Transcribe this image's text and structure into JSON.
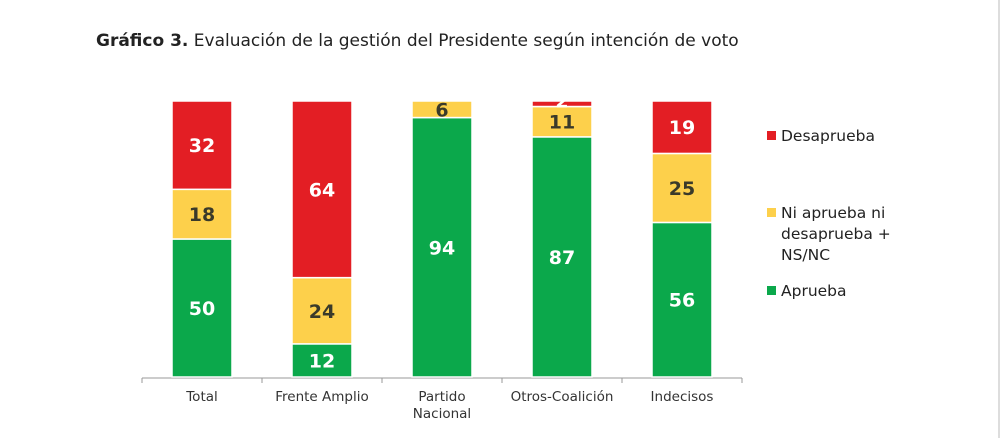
{
  "chart_data": {
    "type": "bar",
    "stacked": true,
    "title_bold": "Gráfico 3.",
    "title": "Evaluación de la gestión del Presidente según intención de voto",
    "categories": [
      [
        "Total"
      ],
      [
        "Frente Amplio"
      ],
      [
        "Partido",
        "Nacional"
      ],
      [
        "Otros-Coalición"
      ],
      [
        "Indecisos"
      ]
    ],
    "series": [
      {
        "name": "Aprueba",
        "color": "#0ba84b",
        "label_color": "#ffffff",
        "values": [
          50,
          12,
          94,
          87,
          56
        ]
      },
      {
        "name": "Ni aprueba ni desaprueba + NS/NC",
        "legend_lines": [
          "Ni aprueba ni",
          "desaprueba +",
          "NS/NC"
        ],
        "color": "#fdd04b",
        "label_color": "#3a3a2a",
        "values": [
          18,
          24,
          6,
          11,
          25
        ]
      },
      {
        "name": "Desaprueba",
        "color": "#e31e24",
        "label_color": "#ffffff",
        "values": [
          32,
          64,
          0,
          2,
          19
        ]
      }
    ],
    "ylim": [
      0,
      100
    ],
    "grid": false,
    "legend": "right"
  }
}
